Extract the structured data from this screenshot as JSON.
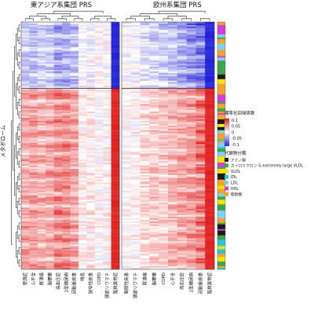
{
  "chart_data": {
    "type": "heatmap",
    "panels": [
      {
        "title": "東アジア系集団 PRS",
        "columns": [
          "肥満症",
          "心不全",
          "胃潰瘍",
          "脳梗塞",
          "高血圧症",
          "2型糖尿病",
          "冠動脈疾患",
          "喘息",
          "狭窄性疾患",
          "COPD",
          "関節リウマチ",
          "脂質異常症"
        ],
        "column_profile": [
          0.55,
          0.6,
          0.5,
          0.55,
          0.75,
          0.7,
          0.55,
          0.1,
          0.15,
          0.05,
          0.1,
          1.0
        ],
        "upper_profile": [
          0.35,
          0.4,
          0.3,
          0.35,
          0.6,
          0.55,
          0.4,
          0.05,
          0.1,
          -0.05,
          0.0,
          1.0
        ]
      },
      {
        "title": "欧州系集団 PRS",
        "columns": [
          "関節性疾患",
          "関節リウマチ",
          "胃潰瘍",
          "脳梗塞",
          "COPD",
          "心不全",
          "高血圧症",
          "2型糖尿病",
          "冠動脈疾患",
          "脂質異常症"
        ],
        "column_profile": [
          0.05,
          0.1,
          0.25,
          0.35,
          0.35,
          0.45,
          0.55,
          0.65,
          0.85,
          1.0
        ],
        "upper_profile": [
          0.05,
          0.1,
          0.2,
          0.3,
          0.35,
          0.4,
          0.55,
          0.75,
          0.85,
          1.0
        ]
      }
    ],
    "row_axis_label": "メタボローム",
    "upper_block_fraction": 0.27,
    "upper_block_sign": -1,
    "lower_block_sign": 1,
    "row_count": 160,
    "color_scale": {
      "title": "標準化回帰係数",
      "ticks": [
        "0.1",
        "0.05",
        "0",
        "-0.05",
        "-0.1"
      ],
      "min": -0.1,
      "max": 0.1,
      "low_color": "#1f1fd6",
      "mid_color": "#ffffff",
      "high_color": "#e01c1c"
    },
    "categories": {
      "title": "代謝物分類",
      "items": [
        {
          "label": "アミノ酸",
          "color": "#1a1a1a"
        },
        {
          "label": "カイロミクロン & extremely large VLDL",
          "color": "#3fa34d"
        },
        {
          "label": "VLDL",
          "color": "#f2e600"
        },
        {
          "label": "IDL",
          "color": "#2bc7d6"
        },
        {
          "label": "LDL",
          "color": "#7fd0f2"
        },
        {
          "label": "HDL",
          "color": "#d23fd6"
        },
        {
          "label": "脂肪酸",
          "color": "#f2a32b"
        }
      ]
    }
  }
}
